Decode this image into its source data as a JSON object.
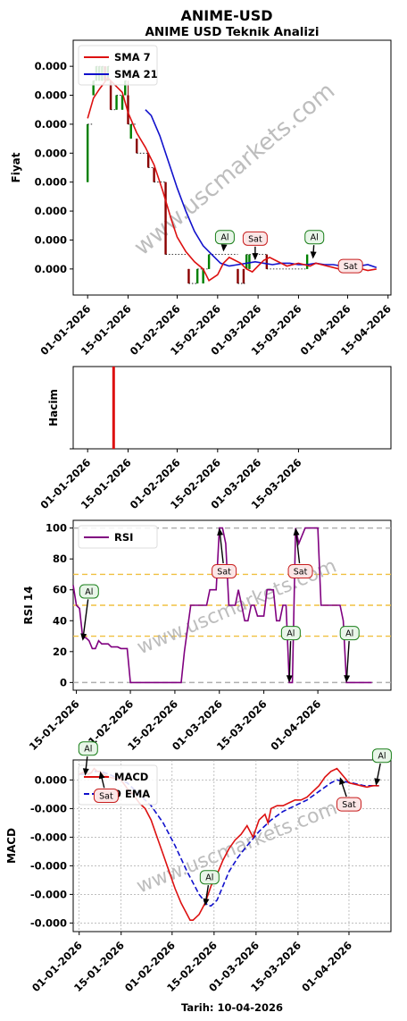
{
  "page": {
    "title": "ANIME-USD",
    "subtitle": "ANIME USD Teknik Analizi",
    "footer": "Tarih: 10-04-2026",
    "watermark": "www.uscmarkets.com"
  },
  "colors": {
    "price_up": "#008000",
    "price_down": "#8b0000",
    "sma7": "#dd1111",
    "sma21": "#1111cc",
    "volume": "#dd1111",
    "rsi": "#800080",
    "macd": "#dd1111",
    "ema9": "#1111cc",
    "buy_border": "#1a7f1a",
    "buy_fill": "#e8f5e8",
    "sell_border": "#c81e1e",
    "sell_fill": "#fbe6e6",
    "rsi_guide": "#f0c040",
    "rsi_bound": "#b0b0b0"
  },
  "chart_data": [
    {
      "id": "price",
      "type": "line",
      "ylabel": "Fiyat",
      "y_tick_labels": [
        "0.000",
        "0.000",
        "0.000",
        "0.000",
        "0.000",
        "0.000",
        "0.000",
        "0.000"
      ],
      "x_tick_labels": [
        "01-01-2026",
        "15-01-2026",
        "01-02-2026",
        "15-02-2026",
        "01-03-2026",
        "15-03-2026",
        "01-04-2026",
        "15-04-2026"
      ],
      "x_ticks_day": [
        0,
        14,
        31,
        45,
        59,
        73,
        90,
        104
      ],
      "xlim": [
        -5,
        105
      ],
      "ylim": [
        -0.9,
        7.9
      ],
      "legend": [
        "SMA 7",
        "SMA 21"
      ],
      "legend_position": "top-left",
      "sma7": [
        [
          0,
          5.2
        ],
        [
          2,
          5.9
        ],
        [
          4,
          6.2
        ],
        [
          7,
          6.6
        ],
        [
          10,
          6.3
        ],
        [
          12,
          6.1
        ],
        [
          14,
          5.4
        ],
        [
          17,
          4.7
        ],
        [
          20,
          4.2
        ],
        [
          23,
          3.6
        ],
        [
          26,
          2.7
        ],
        [
          29,
          1.7
        ],
        [
          31,
          1.1
        ],
        [
          34,
          0.6
        ],
        [
          37,
          0.25
        ],
        [
          40,
          0.0
        ],
        [
          42,
          -0.4
        ],
        [
          45,
          -0.2
        ],
        [
          47,
          0.2
        ],
        [
          49,
          0.4
        ],
        [
          51,
          0.3
        ],
        [
          53,
          0.2
        ],
        [
          55,
          0.0
        ],
        [
          57,
          -0.1
        ],
        [
          59,
          0.1
        ],
        [
          61,
          0.3
        ],
        [
          63,
          0.4
        ],
        [
          65,
          0.3
        ],
        [
          67,
          0.2
        ],
        [
          69,
          0.1
        ],
        [
          71,
          0.15
        ],
        [
          73,
          0.2
        ],
        [
          75,
          0.15
        ],
        [
          77,
          0.1
        ],
        [
          79,
          0.2
        ],
        [
          81,
          0.15
        ],
        [
          83,
          0.1
        ],
        [
          85,
          0.05
        ],
        [
          87,
          0.0
        ],
        [
          89,
          -0.05
        ],
        [
          91,
          0.0
        ],
        [
          93,
          0.05
        ],
        [
          95,
          0.0
        ],
        [
          97,
          -0.05
        ],
        [
          100,
          0.0
        ]
      ],
      "sma21": [
        [
          20,
          5.5
        ],
        [
          22,
          5.3
        ],
        [
          25,
          4.6
        ],
        [
          28,
          3.7
        ],
        [
          31,
          2.8
        ],
        [
          34,
          2.0
        ],
        [
          37,
          1.3
        ],
        [
          40,
          0.8
        ],
        [
          43,
          0.5
        ],
        [
          46,
          0.2
        ],
        [
          49,
          0.1
        ],
        [
          52,
          0.15
        ],
        [
          55,
          0.2
        ],
        [
          58,
          0.25
        ],
        [
          61,
          0.2
        ],
        [
          64,
          0.15
        ],
        [
          67,
          0.2
        ],
        [
          70,
          0.2
        ],
        [
          73,
          0.15
        ],
        [
          76,
          0.15
        ],
        [
          79,
          0.2
        ],
        [
          82,
          0.15
        ],
        [
          85,
          0.15
        ],
        [
          88,
          0.1
        ],
        [
          91,
          0.15
        ],
        [
          94,
          0.1
        ],
        [
          97,
          0.15
        ],
        [
          100,
          0.05
        ]
      ],
      "candles": [
        [
          0,
          3.0,
          5.0,
          3.0,
          5.0
        ],
        [
          2,
          6.0,
          6.5,
          6.0,
          6.5
        ],
        [
          3,
          6.5,
          7.0,
          6.5,
          7.0
        ],
        [
          4,
          6.5,
          7.0,
          6.5,
          7.0
        ],
        [
          5,
          6.5,
          7.0,
          6.5,
          7.0
        ],
        [
          6,
          7.0,
          7.0,
          6.5,
          6.5
        ],
        [
          7,
          6.5,
          7.0,
          6.5,
          7.0
        ],
        [
          8,
          6.5,
          6.5,
          5.5,
          5.5
        ],
        [
          10,
          5.5,
          6.0,
          5.5,
          6.0
        ],
        [
          12,
          5.5,
          6.0,
          5.5,
          6.0
        ],
        [
          13,
          6.0,
          6.5,
          6.0,
          6.5
        ],
        [
          14,
          6.0,
          6.5,
          5.0,
          5.0
        ],
        [
          15,
          4.5,
          5.0,
          4.5,
          5.0
        ],
        [
          17,
          4.5,
          4.5,
          4.0,
          4.0
        ],
        [
          21,
          4.0,
          4.0,
          3.5,
          3.5
        ],
        [
          23,
          3.5,
          3.5,
          3.0,
          3.0
        ],
        [
          27,
          3.0,
          3.0,
          0.5,
          0.5
        ],
        [
          35,
          0.0,
          0.0,
          -0.5,
          -0.5
        ],
        [
          38,
          -0.5,
          0.0,
          -0.5,
          0.0
        ],
        [
          40,
          -0.5,
          0.0,
          -0.5,
          0.0
        ],
        [
          42,
          0.0,
          0.5,
          0.0,
          0.5
        ],
        [
          52,
          0.0,
          0.0,
          -0.5,
          -0.5
        ],
        [
          54,
          0.0,
          0.0,
          -0.5,
          -0.5
        ],
        [
          55,
          0.0,
          0.5,
          0.0,
          0.5
        ],
        [
          56,
          0.0,
          0.5,
          0.0,
          0.5
        ],
        [
          62,
          0.5,
          0.5,
          0.0,
          0.0
        ],
        [
          76,
          0.0,
          0.5,
          0.0,
          0.5
        ]
      ],
      "annotations": [
        {
          "label": "Al",
          "kind": "buy",
          "x": 47,
          "y": 0.6,
          "tx": 47.5,
          "ty": 1.1
        },
        {
          "label": "Sat",
          "kind": "sell",
          "x": 58,
          "y": 0.3,
          "tx": 58,
          "ty": 1.05
        },
        {
          "label": "Al",
          "kind": "buy",
          "x": 78,
          "y": 0.35,
          "tx": 78.5,
          "ty": 1.1
        },
        {
          "label": "Sat",
          "kind": "sell",
          "x": 91,
          "y": 0.0,
          "tx": 91,
          "ty": 0.1
        }
      ]
    },
    {
      "id": "volume",
      "type": "bar",
      "ylabel": "Hacim",
      "x_tick_labels": [
        "01-01-2026",
        "15-01-2026",
        "01-02-2026",
        "15-02-2026",
        "01-03-2026",
        "15-03-2026"
      ],
      "x_ticks_day": [
        0,
        14,
        31,
        45,
        59,
        73
      ],
      "xlim": [
        -5,
        105
      ],
      "ylim": [
        0,
        1.0
      ],
      "bars": [
        [
          9,
          1.0
        ]
      ]
    },
    {
      "id": "rsi",
      "type": "line",
      "ylabel": "RSI 14",
      "y_ticks": [
        0,
        20,
        40,
        60,
        80,
        100
      ],
      "ylim": [
        -5,
        105
      ],
      "x_tick_labels": [
        "15-01-2026",
        "01-02-2026",
        "15-02-2026",
        "01-03-2026",
        "15-03-2026",
        "01-04-2026"
      ],
      "x_ticks_day": [
        14,
        31,
        45,
        59,
        73,
        90
      ],
      "xlim": [
        13,
        113
      ],
      "legend": [
        "RSI"
      ],
      "legend_position": "top-left",
      "guides": [
        30,
        50,
        70
      ],
      "bounds": [
        0,
        100
      ],
      "rsi": [
        [
          13,
          63
        ],
        [
          14,
          50
        ],
        [
          15,
          48
        ],
        [
          16,
          29
        ],
        [
          17,
          29
        ],
        [
          18,
          27
        ],
        [
          19,
          22
        ],
        [
          20,
          22
        ],
        [
          21,
          27
        ],
        [
          22,
          25
        ],
        [
          23,
          25
        ],
        [
          24,
          25
        ],
        [
          25,
          23
        ],
        [
          26,
          23
        ],
        [
          27,
          23
        ],
        [
          28,
          22
        ],
        [
          29,
          22
        ],
        [
          30,
          22
        ],
        [
          31,
          0
        ],
        [
          32,
          0
        ],
        [
          35,
          0
        ],
        [
          40,
          0
        ],
        [
          45,
          0
        ],
        [
          46,
          0
        ],
        [
          47,
          0
        ],
        [
          48,
          20
        ],
        [
          50,
          50
        ],
        [
          52,
          50
        ],
        [
          54,
          50
        ],
        [
          55,
          50
        ],
        [
          56,
          60
        ],
        [
          57,
          60
        ],
        [
          58,
          60
        ],
        [
          59,
          100
        ],
        [
          60,
          100
        ],
        [
          61,
          90
        ],
        [
          62,
          50
        ],
        [
          63,
          50
        ],
        [
          64,
          50
        ],
        [
          65,
          60
        ],
        [
          66,
          50
        ],
        [
          67,
          40
        ],
        [
          68,
          40
        ],
        [
          69,
          50
        ],
        [
          70,
          50
        ],
        [
          71,
          43
        ],
        [
          72,
          43
        ],
        [
          73,
          43
        ],
        [
          74,
          60
        ],
        [
          75,
          60
        ],
        [
          76,
          60
        ],
        [
          77,
          40
        ],
        [
          78,
          40
        ],
        [
          79,
          50
        ],
        [
          80,
          50
        ],
        [
          81,
          0
        ],
        [
          82,
          0
        ],
        [
          83,
          100
        ],
        [
          84,
          90
        ],
        [
          86,
          100
        ],
        [
          88,
          100
        ],
        [
          90,
          100
        ],
        [
          91,
          50
        ],
        [
          93,
          50
        ],
        [
          95,
          50
        ],
        [
          97,
          50
        ],
        [
          98,
          40
        ],
        [
          99,
          0
        ],
        [
          101,
          0
        ],
        [
          103,
          0
        ],
        [
          105,
          0
        ],
        [
          107,
          0
        ]
      ],
      "annotations": [
        {
          "label": "Al",
          "kind": "buy",
          "x": 16,
          "y": 27,
          "tx": 18,
          "ty": 59
        },
        {
          "label": "Sat",
          "kind": "sell",
          "x": 59,
          "y": 100,
          "tx": 60.5,
          "ty": 72
        },
        {
          "label": "Sat",
          "kind": "sell",
          "x": 83,
          "y": 100,
          "tx": 84.5,
          "ty": 72
        },
        {
          "label": "Al",
          "kind": "buy",
          "x": 81,
          "y": 0,
          "tx": 81.5,
          "ty": 32
        },
        {
          "label": "Al",
          "kind": "buy",
          "x": 99,
          "y": 0,
          "tx": 100,
          "ty": 32
        }
      ]
    },
    {
      "id": "macd",
      "type": "line",
      "ylabel": "MACD",
      "y_tick_labels": [
        "0.000",
        "-0.000",
        "-0.000",
        "-0.000",
        "-0.000",
        "-0.000"
      ],
      "y_ticks": [
        0,
        -1,
        -2,
        -3,
        -4,
        -5
      ],
      "ylim": [
        -5.3,
        0.7
      ],
      "x_tick_labels": [
        "01-01-2026",
        "15-01-2026",
        "01-02-2026",
        "15-02-2026",
        "01-03-2026",
        "15-03-2026",
        "01-04-2026"
      ],
      "x_ticks_day": [
        0,
        14,
        31,
        45,
        59,
        73,
        90
      ],
      "xlim": [
        -2,
        104
      ],
      "legend": [
        "MACD",
        "9 EMA"
      ],
      "legend_position": "top-left",
      "grid": true,
      "macd": [
        [
          0,
          0.2
        ],
        [
          2,
          0.3
        ],
        [
          3,
          0.2
        ],
        [
          4,
          0.25
        ],
        [
          5,
          0.4
        ],
        [
          6,
          0.3
        ],
        [
          7,
          0.3
        ],
        [
          8,
          0.2
        ],
        [
          10,
          0.1
        ],
        [
          12,
          0.05
        ],
        [
          14,
          0.0
        ],
        [
          16,
          -0.3
        ],
        [
          18,
          -0.5
        ],
        [
          20,
          -0.8
        ],
        [
          22,
          -1.0
        ],
        [
          24,
          -1.4
        ],
        [
          26,
          -2.0
        ],
        [
          28,
          -2.6
        ],
        [
          30,
          -3.2
        ],
        [
          32,
          -3.8
        ],
        [
          34,
          -4.3
        ],
        [
          36,
          -4.7
        ],
        [
          37,
          -4.9
        ],
        [
          38,
          -4.9
        ],
        [
          40,
          -4.7
        ],
        [
          42,
          -4.3
        ],
        [
          44,
          -3.7
        ],
        [
          46,
          -3.3
        ],
        [
          48,
          -2.8
        ],
        [
          50,
          -2.4
        ],
        [
          52,
          -2.1
        ],
        [
          54,
          -1.9
        ],
        [
          56,
          -1.6
        ],
        [
          58,
          -2.0
        ],
        [
          60,
          -1.4
        ],
        [
          62,
          -1.2
        ],
        [
          63,
          -1.5
        ],
        [
          64,
          -1.0
        ],
        [
          66,
          -0.9
        ],
        [
          68,
          -0.9
        ],
        [
          70,
          -0.8
        ],
        [
          72,
          -0.7
        ],
        [
          74,
          -0.7
        ],
        [
          76,
          -0.6
        ],
        [
          78,
          -0.4
        ],
        [
          80,
          -0.2
        ],
        [
          82,
          0.1
        ],
        [
          84,
          0.3
        ],
        [
          86,
          0.4
        ],
        [
          88,
          0.15
        ],
        [
          90,
          -0.1
        ],
        [
          92,
          -0.15
        ],
        [
          94,
          -0.2
        ],
        [
          96,
          -0.25
        ],
        [
          98,
          -0.2
        ],
        [
          100,
          -0.2
        ]
      ],
      "ema9": [
        [
          0,
          0.2
        ],
        [
          3,
          0.2
        ],
        [
          5,
          0.3
        ],
        [
          7,
          0.3
        ],
        [
          10,
          0.2
        ],
        [
          13,
          0.05
        ],
        [
          16,
          -0.1
        ],
        [
          20,
          -0.5
        ],
        [
          24,
          -0.9
        ],
        [
          28,
          -1.5
        ],
        [
          32,
          -2.3
        ],
        [
          36,
          -3.2
        ],
        [
          40,
          -4.0
        ],
        [
          43,
          -4.4
        ],
        [
          44,
          -4.4
        ],
        [
          46,
          -4.2
        ],
        [
          48,
          -3.7
        ],
        [
          50,
          -3.2
        ],
        [
          53,
          -2.7
        ],
        [
          56,
          -2.3
        ],
        [
          60,
          -1.8
        ],
        [
          64,
          -1.4
        ],
        [
          68,
          -1.1
        ],
        [
          72,
          -0.9
        ],
        [
          76,
          -0.7
        ],
        [
          80,
          -0.4
        ],
        [
          84,
          -0.1
        ],
        [
          86,
          0.0
        ],
        [
          88,
          -0.05
        ],
        [
          91,
          -0.1
        ],
        [
          95,
          -0.2
        ],
        [
          100,
          -0.2
        ]
      ],
      "annotations": [
        {
          "label": "Al",
          "kind": "buy",
          "x": 2,
          "y": 0.15,
          "tx": 3,
          "ty": 1.1
        },
        {
          "label": "Sat",
          "kind": "sell",
          "x": 7,
          "y": 0.3,
          "tx": 9,
          "ty": -0.55
        },
        {
          "label": "Al",
          "kind": "buy",
          "x": 42,
          "y": -4.4,
          "tx": 43.5,
          "ty": -3.4
        },
        {
          "label": "Sat",
          "kind": "sell",
          "x": 87,
          "y": 0.1,
          "tx": 90,
          "ty": -0.85
        },
        {
          "label": "Al",
          "kind": "buy",
          "x": 99,
          "y": -0.2,
          "tx": 101,
          "ty": 0.85
        }
      ]
    }
  ]
}
